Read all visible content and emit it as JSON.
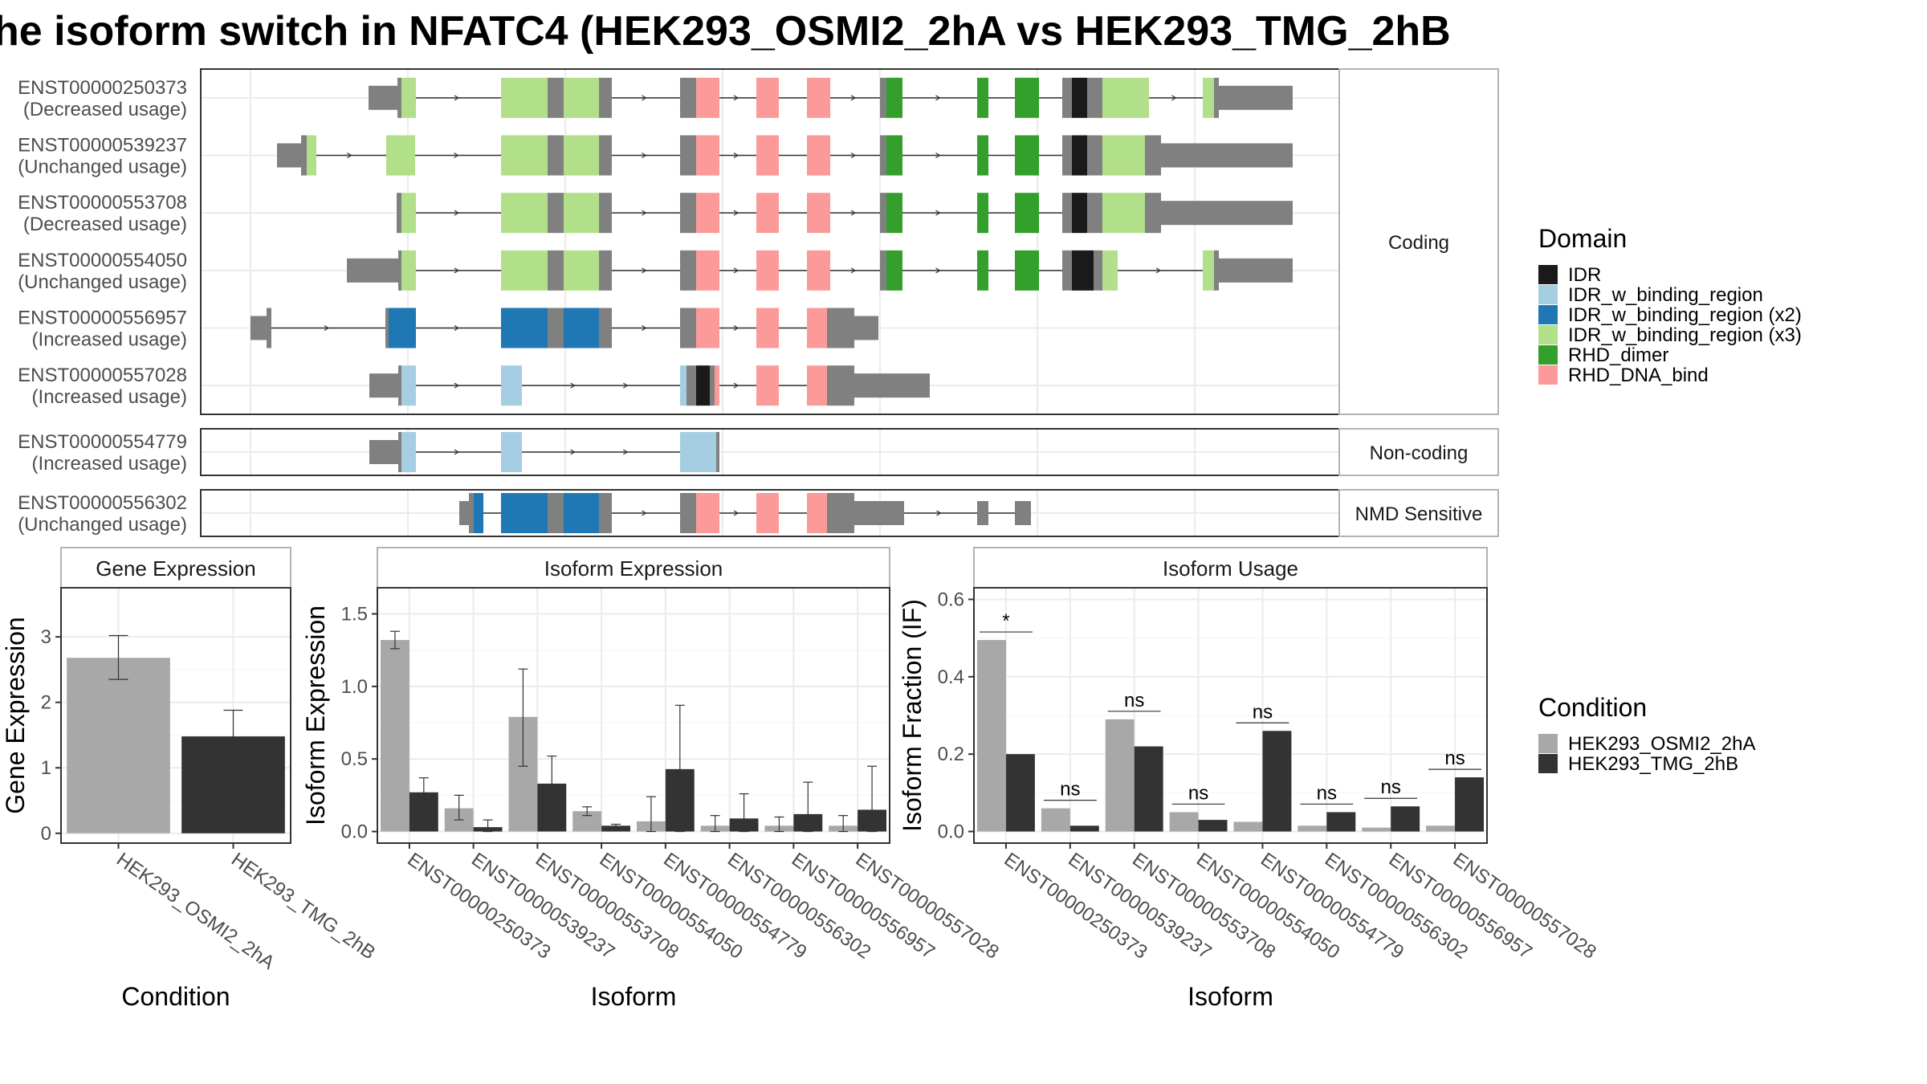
{
  "title": "he isoform switch in NFATC4 (HEK293_OSMI2_2hA vs HEK293_TMG_2hB",
  "colors": {
    "IDR": "#1a1a1a",
    "IDR_w_binding_region": "#a6cee3",
    "IDR_w_binding_region (x2)": "#1f78b4",
    "IDR_w_binding_region (x3)": "#b2df8a",
    "RHD_dimer": "#33a02c",
    "RHD_DNA_bind": "#fb9a99",
    "exon": "#808080",
    "cond1": "#a8a8a8",
    "cond2": "#333333"
  },
  "structure": {
    "panels": [
      {
        "label": "Coding",
        "transcripts": [
          {
            "id": "ENST00000250373",
            "usage": "(Decreased usage)"
          },
          {
            "id": "ENST00000539237",
            "usage": "(Unchanged usage)"
          },
          {
            "id": "ENST00000553708",
            "usage": "(Decreased usage)"
          },
          {
            "id": "ENST00000554050",
            "usage": "(Unchanged usage)"
          },
          {
            "id": "ENST00000556957",
            "usage": "(Increased usage)"
          },
          {
            "id": "ENST00000557028",
            "usage": "(Increased usage)"
          }
        ]
      },
      {
        "label": "Non-coding",
        "transcripts": [
          {
            "id": "ENST00000554779",
            "usage": "(Increased usage)"
          }
        ]
      },
      {
        "label": "NMD Sensitive",
        "transcripts": [
          {
            "id": "ENST00000556302",
            "usage": "(Unchanged usage)"
          }
        ]
      }
    ]
  },
  "legend_domain": {
    "title": "Domain",
    "items": [
      "IDR",
      "IDR_w_binding_region",
      "IDR_w_binding_region (x2)",
      "IDR_w_binding_region (x3)",
      "RHD_dimer",
      "RHD_DNA_bind"
    ]
  },
  "legend_condition": {
    "title": "Condition",
    "items": [
      "HEK293_OSMI2_2hA",
      "HEK293_TMG_2hB"
    ]
  },
  "chart_data": [
    {
      "type": "bar",
      "title": "Gene Expression",
      "xlabel": "Condition",
      "ylabel": "Gene Expression",
      "categories": [
        "HEK293_OSMI2_2hA",
        "HEK293_TMG_2hB"
      ],
      "values": [
        2.68,
        1.48
      ],
      "errors_low": [
        2.35,
        1.1
      ],
      "errors_high": [
        3.02,
        1.88
      ],
      "ylim": [
        -0.15,
        3.75
      ],
      "yticks": [
        0,
        1,
        2,
        3
      ]
    },
    {
      "type": "bar",
      "title": "Isoform Expression",
      "xlabel": "Isoform",
      "ylabel": "Isoform Expression",
      "categories": [
        "ENST00000250373",
        "ENST00000539237",
        "ENST00000553708",
        "ENST00000554050",
        "ENST00000554779",
        "ENST00000556302",
        "ENST00000556957",
        "ENST00000557028"
      ],
      "series": [
        {
          "name": "HEK293_OSMI2_2hA",
          "values": [
            1.32,
            0.16,
            0.79,
            0.14,
            0.07,
            0.04,
            0.04,
            0.04
          ],
          "err_low": [
            1.26,
            0.08,
            0.45,
            0.11,
            0.0,
            0.0,
            0.0,
            0.0
          ],
          "err_high": [
            1.38,
            0.25,
            1.12,
            0.17,
            0.24,
            0.11,
            0.1,
            0.11
          ]
        },
        {
          "name": "HEK293_TMG_2hB",
          "values": [
            0.27,
            0.03,
            0.33,
            0.04,
            0.43,
            0.09,
            0.12,
            0.15
          ],
          "err_low": [
            0.18,
            0.0,
            0.17,
            0.03,
            0.0,
            0.0,
            0.0,
            0.0
          ],
          "err_high": [
            0.37,
            0.08,
            0.52,
            0.05,
            0.87,
            0.26,
            0.34,
            0.45
          ]
        }
      ],
      "ylim": [
        -0.08,
        1.68
      ],
      "yticks": [
        0.0,
        0.5,
        1.0,
        1.5
      ]
    },
    {
      "type": "bar",
      "title": "Isoform Usage",
      "xlabel": "Isoform",
      "ylabel": "Isoform Fraction (IF)",
      "categories": [
        "ENST00000250373",
        "ENST00000539237",
        "ENST00000553708",
        "ENST00000554050",
        "ENST00000554779",
        "ENST00000556302",
        "ENST00000556957",
        "ENST00000557028"
      ],
      "series": [
        {
          "name": "HEK293_OSMI2_2hA",
          "values": [
            0.495,
            0.06,
            0.29,
            0.05,
            0.025,
            0.015,
            0.01,
            0.015
          ]
        },
        {
          "name": "HEK293_TMG_2hB",
          "values": [
            0.2,
            0.015,
            0.22,
            0.03,
            0.26,
            0.05,
            0.065,
            0.14
          ]
        }
      ],
      "significance": [
        "*",
        "ns",
        "ns",
        "ns",
        "ns",
        "ns",
        "ns",
        "ns"
      ],
      "ylim": [
        -0.03,
        0.63
      ],
      "yticks": [
        0.0,
        0.2,
        0.4,
        0.6
      ]
    }
  ]
}
